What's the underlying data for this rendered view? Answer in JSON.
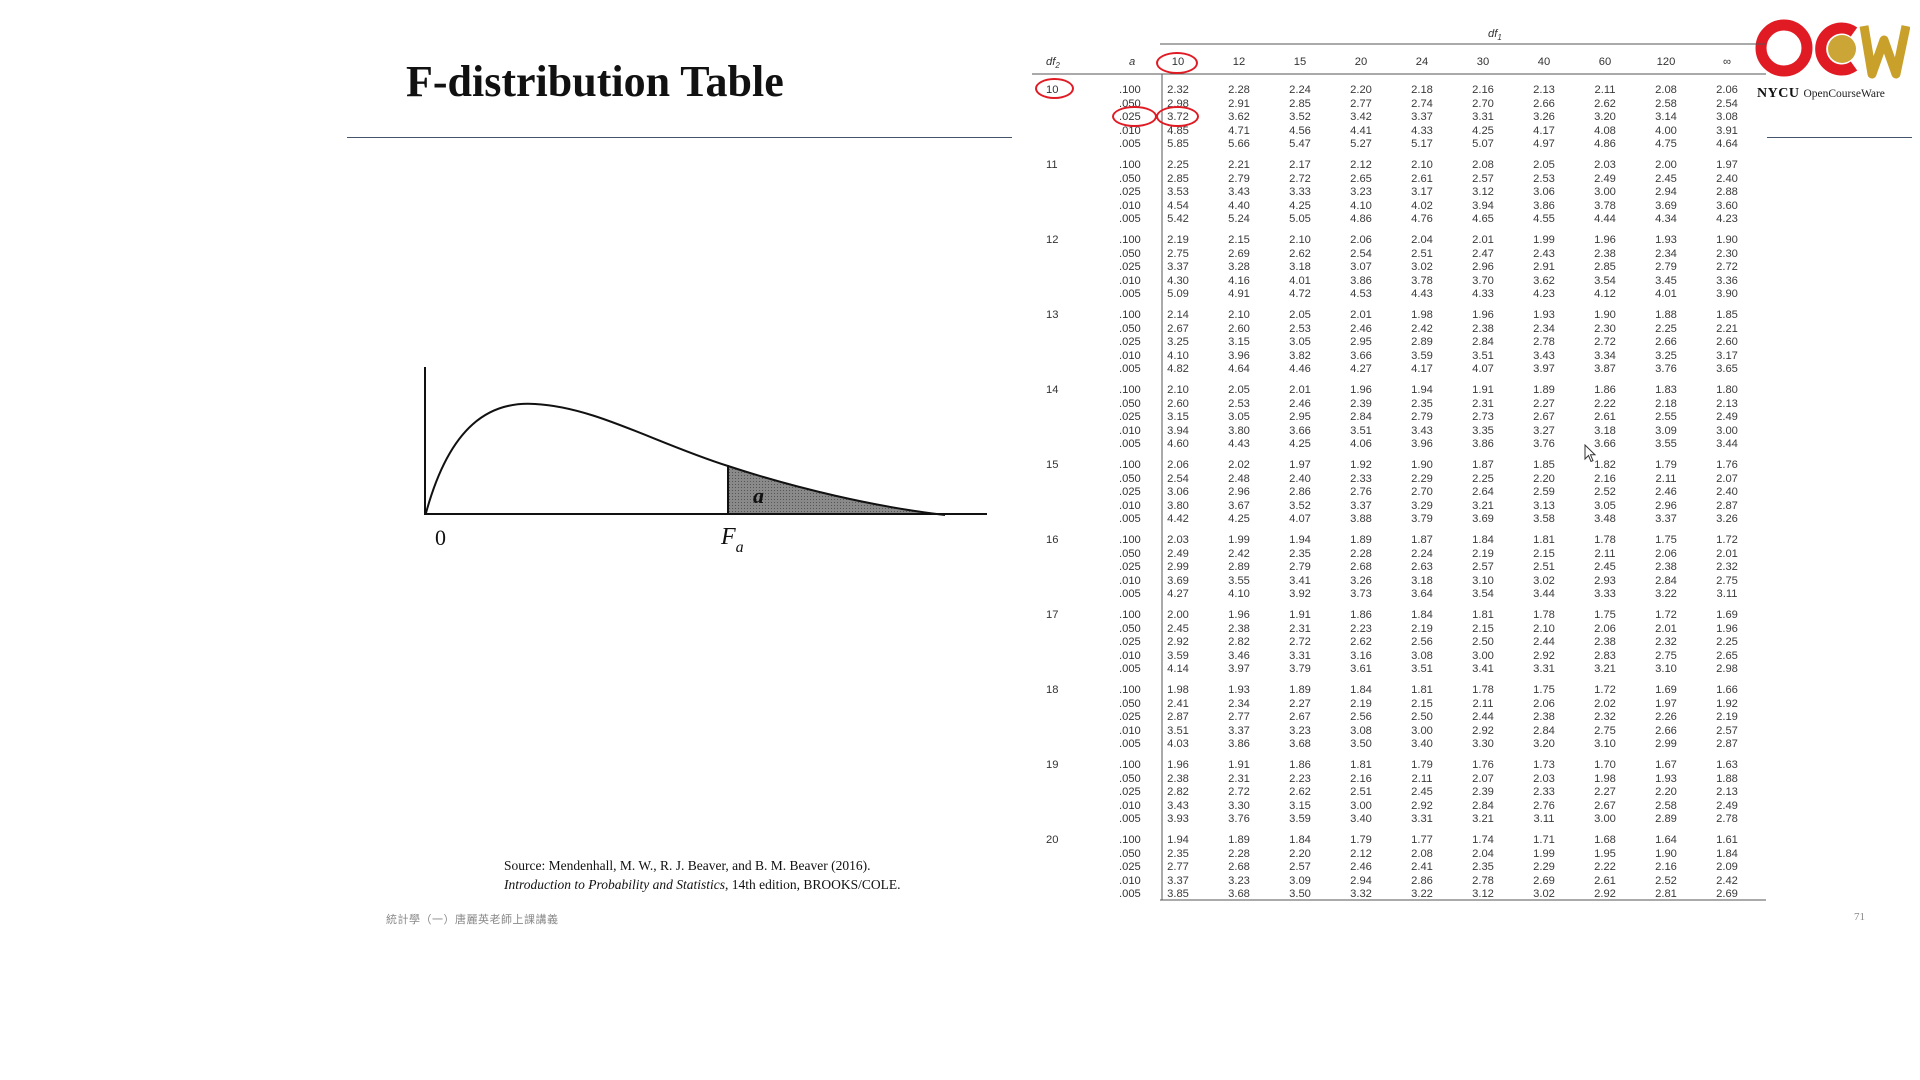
{
  "slide": {
    "title": "F-distribution Table",
    "page_number": "71",
    "footer_text": "統計學（一）唐麗英老師上課講義",
    "source_line1": "Source: Mendenhall, M. W., R. J. Beaver, and B. M. Beaver (2016).",
    "source_line2_italic": "Introduction to Probability and Statistics",
    "source_line2_rest": ", 14th edition, BROOKS/COLE."
  },
  "logo": {
    "line1": "NYCU",
    "line2": "OpenCourseWare",
    "colors": {
      "red": "#e01b24",
      "gold": "#c8a02a"
    }
  },
  "curve_figure": {
    "origin_label": "0",
    "critical_label_base": "F",
    "critical_label_sub": "a",
    "area_label": "a"
  },
  "f_table": {
    "df1_label": "df",
    "df1_sub": "1",
    "df2_label": "df",
    "df2_sub": "2",
    "a_label": "a",
    "df1_values": [
      "10",
      "12",
      "15",
      "20",
      "24",
      "30",
      "40",
      "60",
      "120",
      "∞"
    ],
    "alpha_levels": [
      ".100",
      ".050",
      ".025",
      ".010",
      ".005"
    ],
    "highlight_color": "#e01b24",
    "highlighted": [
      "df1 = 10",
      "df2 = 10",
      "a = .025",
      "value 3.72"
    ],
    "blocks": [
      {
        "df2": "10",
        "rows": [
          [
            "2.32",
            "2.28",
            "2.24",
            "2.20",
            "2.18",
            "2.16",
            "2.13",
            "2.11",
            "2.08",
            "2.06"
          ],
          [
            "2.98",
            "2.91",
            "2.85",
            "2.77",
            "2.74",
            "2.70",
            "2.66",
            "2.62",
            "2.58",
            "2.54"
          ],
          [
            "3.72",
            "3.62",
            "3.52",
            "3.42",
            "3.37",
            "3.31",
            "3.26",
            "3.20",
            "3.14",
            "3.08"
          ],
          [
            "4.85",
            "4.71",
            "4.56",
            "4.41",
            "4.33",
            "4.25",
            "4.17",
            "4.08",
            "4.00",
            "3.91"
          ],
          [
            "5.85",
            "5.66",
            "5.47",
            "5.27",
            "5.17",
            "5.07",
            "4.97",
            "4.86",
            "4.75",
            "4.64"
          ]
        ]
      },
      {
        "df2": "11",
        "rows": [
          [
            "2.25",
            "2.21",
            "2.17",
            "2.12",
            "2.10",
            "2.08",
            "2.05",
            "2.03",
            "2.00",
            "1.97"
          ],
          [
            "2.85",
            "2.79",
            "2.72",
            "2.65",
            "2.61",
            "2.57",
            "2.53",
            "2.49",
            "2.45",
            "2.40"
          ],
          [
            "3.53",
            "3.43",
            "3.33",
            "3.23",
            "3.17",
            "3.12",
            "3.06",
            "3.00",
            "2.94",
            "2.88"
          ],
          [
            "4.54",
            "4.40",
            "4.25",
            "4.10",
            "4.02",
            "3.94",
            "3.86",
            "3.78",
            "3.69",
            "3.60"
          ],
          [
            "5.42",
            "5.24",
            "5.05",
            "4.86",
            "4.76",
            "4.65",
            "4.55",
            "4.44",
            "4.34",
            "4.23"
          ]
        ]
      },
      {
        "df2": "12",
        "rows": [
          [
            "2.19",
            "2.15",
            "2.10",
            "2.06",
            "2.04",
            "2.01",
            "1.99",
            "1.96",
            "1.93",
            "1.90"
          ],
          [
            "2.75",
            "2.69",
            "2.62",
            "2.54",
            "2.51",
            "2.47",
            "2.43",
            "2.38",
            "2.34",
            "2.30"
          ],
          [
            "3.37",
            "3.28",
            "3.18",
            "3.07",
            "3.02",
            "2.96",
            "2.91",
            "2.85",
            "2.79",
            "2.72"
          ],
          [
            "4.30",
            "4.16",
            "4.01",
            "3.86",
            "3.78",
            "3.70",
            "3.62",
            "3.54",
            "3.45",
            "3.36"
          ],
          [
            "5.09",
            "4.91",
            "4.72",
            "4.53",
            "4.43",
            "4.33",
            "4.23",
            "4.12",
            "4.01",
            "3.90"
          ]
        ]
      },
      {
        "df2": "13",
        "rows": [
          [
            "2.14",
            "2.10",
            "2.05",
            "2.01",
            "1.98",
            "1.96",
            "1.93",
            "1.90",
            "1.88",
            "1.85"
          ],
          [
            "2.67",
            "2.60",
            "2.53",
            "2.46",
            "2.42",
            "2.38",
            "2.34",
            "2.30",
            "2.25",
            "2.21"
          ],
          [
            "3.25",
            "3.15",
            "3.05",
            "2.95",
            "2.89",
            "2.84",
            "2.78",
            "2.72",
            "2.66",
            "2.60"
          ],
          [
            "4.10",
            "3.96",
            "3.82",
            "3.66",
            "3.59",
            "3.51",
            "3.43",
            "3.34",
            "3.25",
            "3.17"
          ],
          [
            "4.82",
            "4.64",
            "4.46",
            "4.27",
            "4.17",
            "4.07",
            "3.97",
            "3.87",
            "3.76",
            "3.65"
          ]
        ]
      },
      {
        "df2": "14",
        "rows": [
          [
            "2.10",
            "2.05",
            "2.01",
            "1.96",
            "1.94",
            "1.91",
            "1.89",
            "1.86",
            "1.83",
            "1.80"
          ],
          [
            "2.60",
            "2.53",
            "2.46",
            "2.39",
            "2.35",
            "2.31",
            "2.27",
            "2.22",
            "2.18",
            "2.13"
          ],
          [
            "3.15",
            "3.05",
            "2.95",
            "2.84",
            "2.79",
            "2.73",
            "2.67",
            "2.61",
            "2.55",
            "2.49"
          ],
          [
            "3.94",
            "3.80",
            "3.66",
            "3.51",
            "3.43",
            "3.35",
            "3.27",
            "3.18",
            "3.09",
            "3.00"
          ],
          [
            "4.60",
            "4.43",
            "4.25",
            "4.06",
            "3.96",
            "3.86",
            "3.76",
            "3.66",
            "3.55",
            "3.44"
          ]
        ]
      },
      {
        "df2": "15",
        "rows": [
          [
            "2.06",
            "2.02",
            "1.97",
            "1.92",
            "1.90",
            "1.87",
            "1.85",
            "1.82",
            "1.79",
            "1.76"
          ],
          [
            "2.54",
            "2.48",
            "2.40",
            "2.33",
            "2.29",
            "2.25",
            "2.20",
            "2.16",
            "2.11",
            "2.07"
          ],
          [
            "3.06",
            "2.96",
            "2.86",
            "2.76",
            "2.70",
            "2.64",
            "2.59",
            "2.52",
            "2.46",
            "2.40"
          ],
          [
            "3.80",
            "3.67",
            "3.52",
            "3.37",
            "3.29",
            "3.21",
            "3.13",
            "3.05",
            "2.96",
            "2.87"
          ],
          [
            "4.42",
            "4.25",
            "4.07",
            "3.88",
            "3.79",
            "3.69",
            "3.58",
            "3.48",
            "3.37",
            "3.26"
          ]
        ]
      },
      {
        "df2": "16",
        "rows": [
          [
            "2.03",
            "1.99",
            "1.94",
            "1.89",
            "1.87",
            "1.84",
            "1.81",
            "1.78",
            "1.75",
            "1.72"
          ],
          [
            "2.49",
            "2.42",
            "2.35",
            "2.28",
            "2.24",
            "2.19",
            "2.15",
            "2.11",
            "2.06",
            "2.01"
          ],
          [
            "2.99",
            "2.89",
            "2.79",
            "2.68",
            "2.63",
            "2.57",
            "2.51",
            "2.45",
            "2.38",
            "2.32"
          ],
          [
            "3.69",
            "3.55",
            "3.41",
            "3.26",
            "3.18",
            "3.10",
            "3.02",
            "2.93",
            "2.84",
            "2.75"
          ],
          [
            "4.27",
            "4.10",
            "3.92",
            "3.73",
            "3.64",
            "3.54",
            "3.44",
            "3.33",
            "3.22",
            "3.11"
          ]
        ]
      },
      {
        "df2": "17",
        "rows": [
          [
            "2.00",
            "1.96",
            "1.91",
            "1.86",
            "1.84",
            "1.81",
            "1.78",
            "1.75",
            "1.72",
            "1.69"
          ],
          [
            "2.45",
            "2.38",
            "2.31",
            "2.23",
            "2.19",
            "2.15",
            "2.10",
            "2.06",
            "2.01",
            "1.96"
          ],
          [
            "2.92",
            "2.82",
            "2.72",
            "2.62",
            "2.56",
            "2.50",
            "2.44",
            "2.38",
            "2.32",
            "2.25"
          ],
          [
            "3.59",
            "3.46",
            "3.31",
            "3.16",
            "3.08",
            "3.00",
            "2.92",
            "2.83",
            "2.75",
            "2.65"
          ],
          [
            "4.14",
            "3.97",
            "3.79",
            "3.61",
            "3.51",
            "3.41",
            "3.31",
            "3.21",
            "3.10",
            "2.98"
          ]
        ]
      },
      {
        "df2": "18",
        "rows": [
          [
            "1.98",
            "1.93",
            "1.89",
            "1.84",
            "1.81",
            "1.78",
            "1.75",
            "1.72",
            "1.69",
            "1.66"
          ],
          [
            "2.41",
            "2.34",
            "2.27",
            "2.19",
            "2.15",
            "2.11",
            "2.06",
            "2.02",
            "1.97",
            "1.92"
          ],
          [
            "2.87",
            "2.77",
            "2.67",
            "2.56",
            "2.50",
            "2.44",
            "2.38",
            "2.32",
            "2.26",
            "2.19"
          ],
          [
            "3.51",
            "3.37",
            "3.23",
            "3.08",
            "3.00",
            "2.92",
            "2.84",
            "2.75",
            "2.66",
            "2.57"
          ],
          [
            "4.03",
            "3.86",
            "3.68",
            "3.50",
            "3.40",
            "3.30",
            "3.20",
            "3.10",
            "2.99",
            "2.87"
          ]
        ]
      },
      {
        "df2": "19",
        "rows": [
          [
            "1.96",
            "1.91",
            "1.86",
            "1.81",
            "1.79",
            "1.76",
            "1.73",
            "1.70",
            "1.67",
            "1.63"
          ],
          [
            "2.38",
            "2.31",
            "2.23",
            "2.16",
            "2.11",
            "2.07",
            "2.03",
            "1.98",
            "1.93",
            "1.88"
          ],
          [
            "2.82",
            "2.72",
            "2.62",
            "2.51",
            "2.45",
            "2.39",
            "2.33",
            "2.27",
            "2.20",
            "2.13"
          ],
          [
            "3.43",
            "3.30",
            "3.15",
            "3.00",
            "2.92",
            "2.84",
            "2.76",
            "2.67",
            "2.58",
            "2.49"
          ],
          [
            "3.93",
            "3.76",
            "3.59",
            "3.40",
            "3.31",
            "3.21",
            "3.11",
            "3.00",
            "2.89",
            "2.78"
          ]
        ]
      },
      {
        "df2": "20",
        "rows": [
          [
            "1.94",
            "1.89",
            "1.84",
            "1.79",
            "1.77",
            "1.74",
            "1.71",
            "1.68",
            "1.64",
            "1.61"
          ],
          [
            "2.35",
            "2.28",
            "2.20",
            "2.12",
            "2.08",
            "2.04",
            "1.99",
            "1.95",
            "1.90",
            "1.84"
          ],
          [
            "2.77",
            "2.68",
            "2.57",
            "2.46",
            "2.41",
            "2.35",
            "2.29",
            "2.22",
            "2.16",
            "2.09"
          ],
          [
            "3.37",
            "3.23",
            "3.09",
            "2.94",
            "2.86",
            "2.78",
            "2.69",
            "2.61",
            "2.52",
            "2.42"
          ],
          [
            "3.85",
            "3.68",
            "3.50",
            "3.32",
            "3.22",
            "3.12",
            "3.02",
            "2.92",
            "2.81",
            "2.69"
          ]
        ]
      }
    ]
  }
}
